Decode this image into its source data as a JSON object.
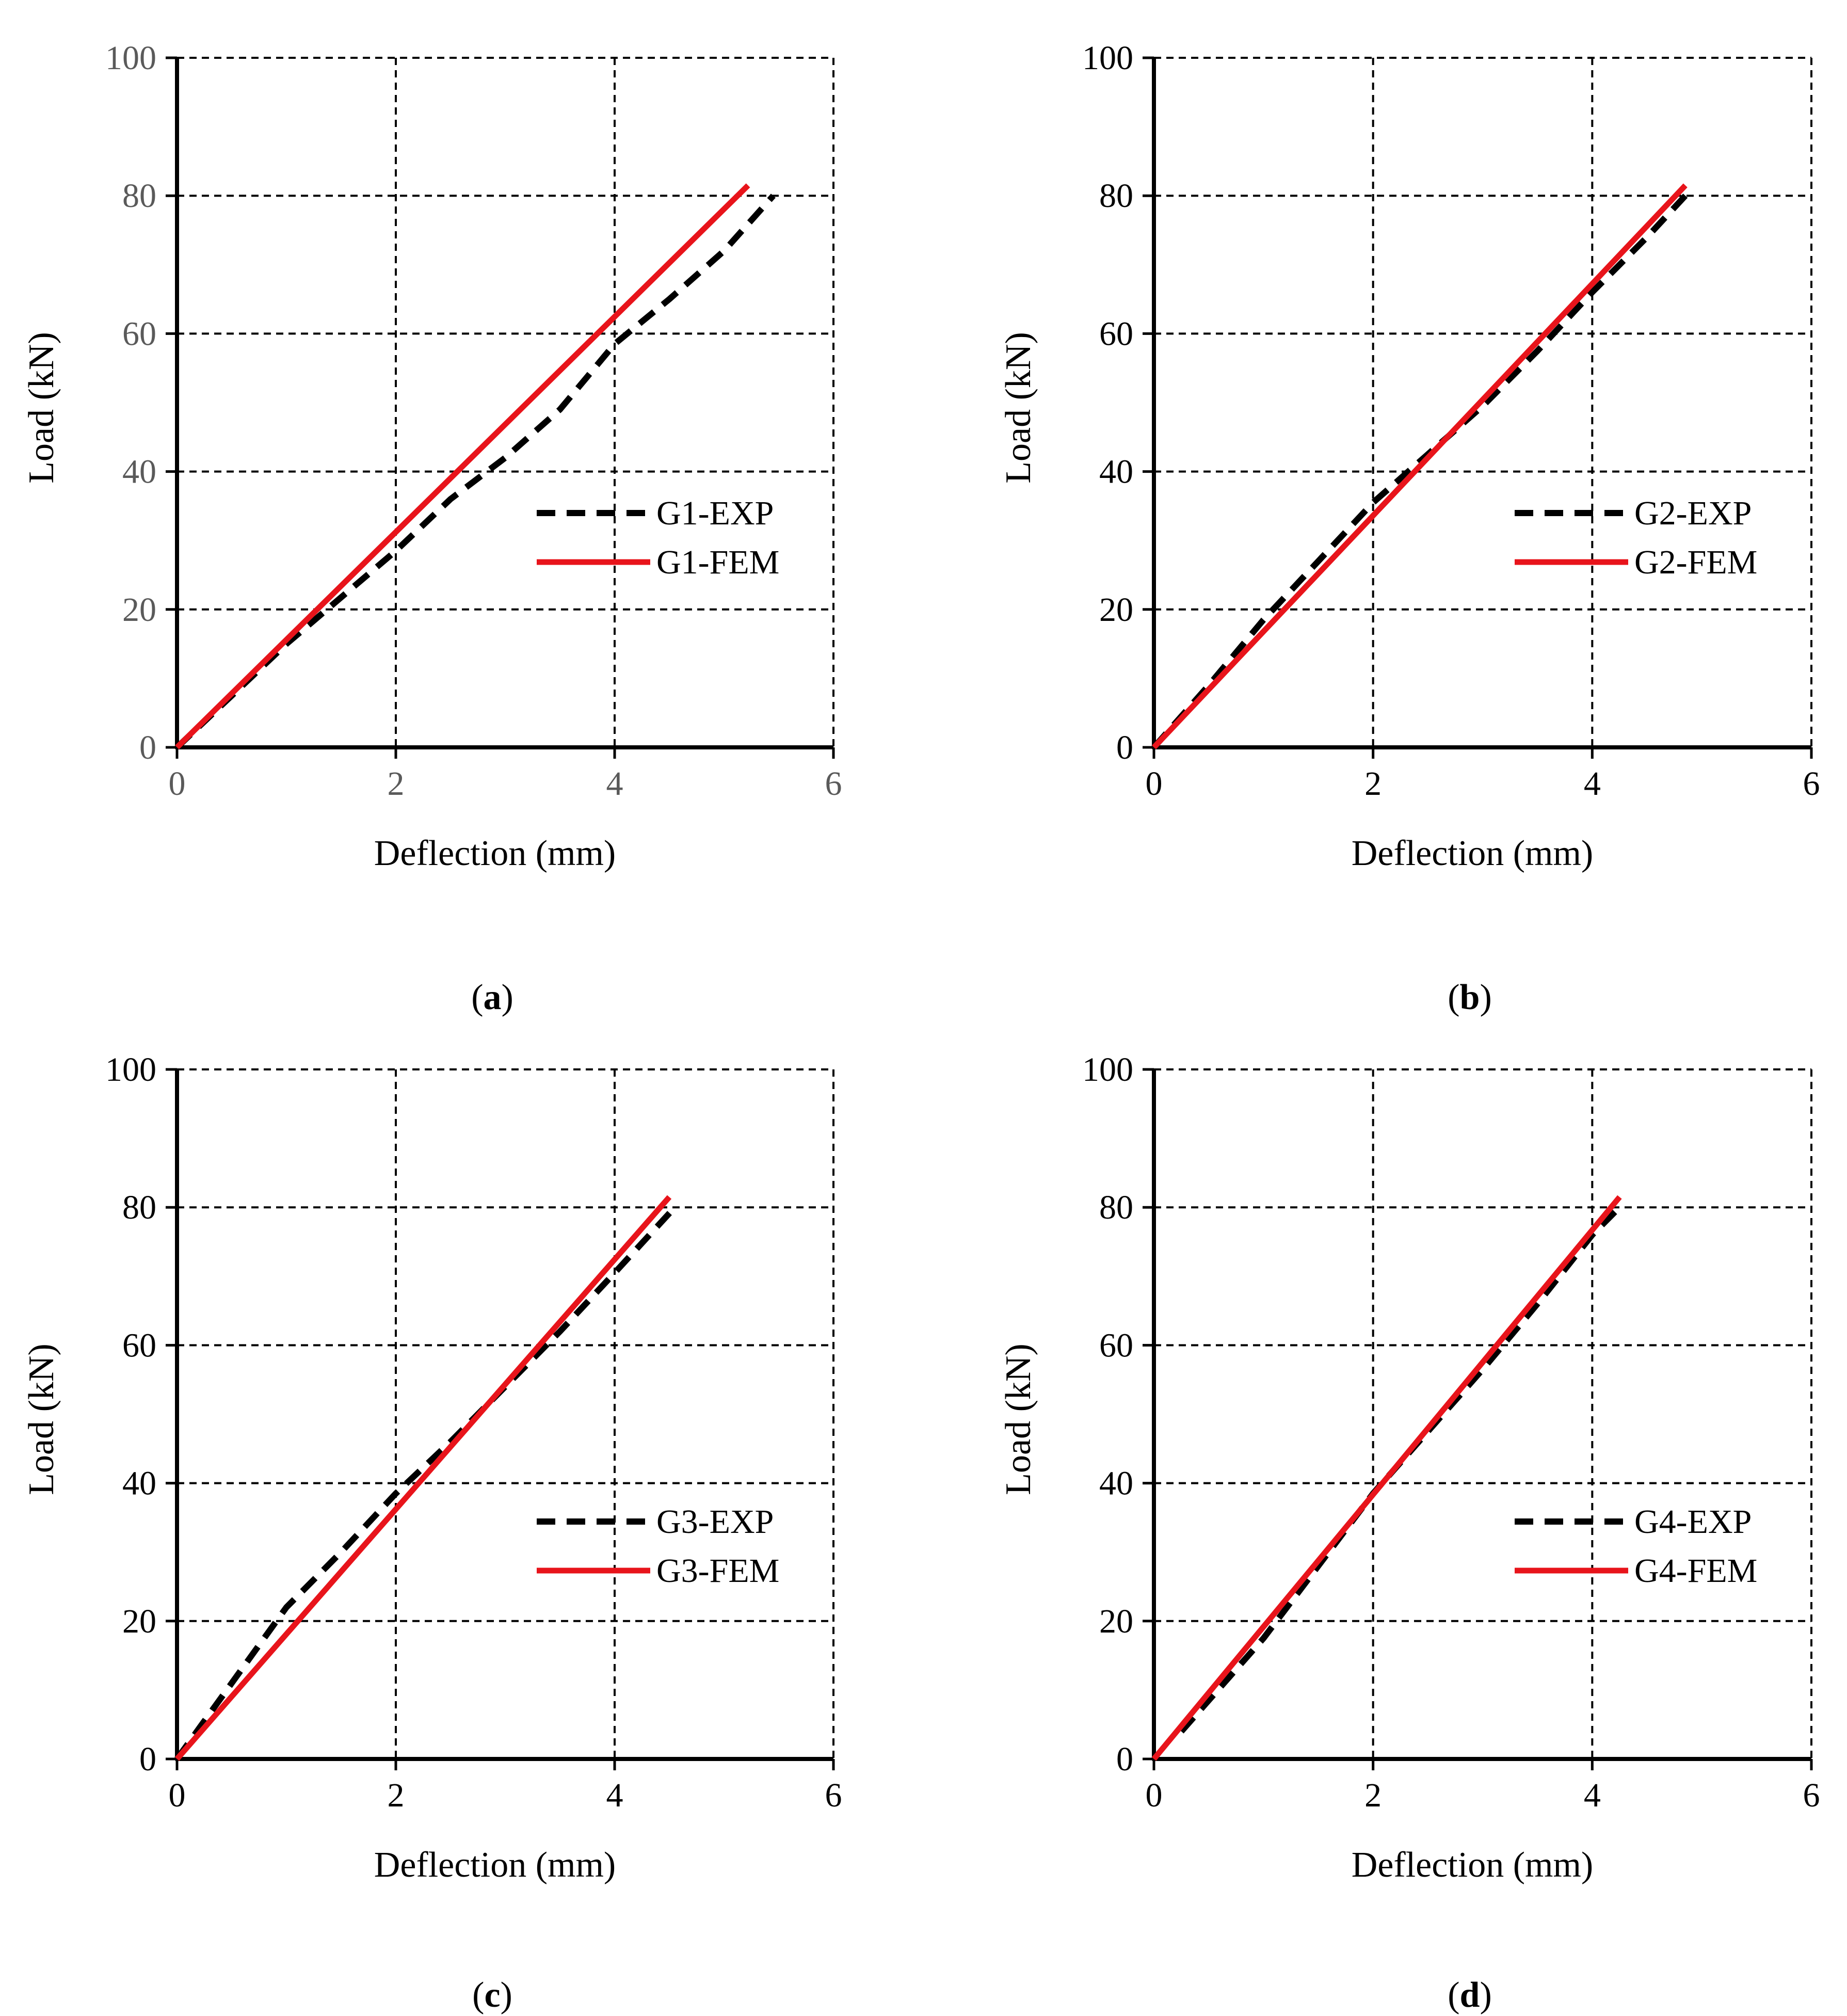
{
  "colors": {
    "exp": "#000000",
    "fem": "#e8141b",
    "grid": "#000000",
    "tick_a": "#5a5a5a",
    "tick": "#000000"
  },
  "chart_data": [
    {
      "type": "line",
      "panel": "(a)",
      "panel_letter": "a",
      "xlabel": "Deflection (mm)",
      "ylabel": "Load (kN)",
      "xlim": [
        0,
        6
      ],
      "ylim": [
        0,
        100
      ],
      "xticks": [
        0,
        2,
        4,
        6
      ],
      "yticks": [
        0,
        20,
        40,
        60,
        80,
        100
      ],
      "grid": true,
      "legend_position": "right-middle",
      "series": [
        {
          "name": "G1-EXP",
          "style": "dashed",
          "x": [
            0,
            1,
            2,
            2.5,
            3,
            3.5,
            4,
            4.5,
            5,
            5.45
          ],
          "y": [
            0,
            15,
            28.5,
            36,
            42,
            49,
            58.5,
            65,
            72,
            80
          ]
        },
        {
          "name": "G1-FEM",
          "style": "solid",
          "x": [
            0,
            5.22
          ],
          "y": [
            0,
            81.5
          ]
        }
      ]
    },
    {
      "type": "line",
      "panel": "(b)",
      "panel_letter": "b",
      "xlabel": "Deflection (mm)",
      "ylabel": "Load (kN)",
      "xlim": [
        0,
        6
      ],
      "ylim": [
        0,
        100
      ],
      "xticks": [
        0,
        2,
        4,
        6
      ],
      "yticks": [
        0,
        20,
        40,
        60,
        80,
        100
      ],
      "grid": true,
      "legend_position": "right-middle",
      "series": [
        {
          "name": "G2-EXP",
          "style": "dashed",
          "x": [
            0,
            0.5,
            1,
            1.5,
            2,
            2.5,
            3,
            3.5,
            4,
            4.5,
            4.85
          ],
          "y": [
            0,
            9,
            18.5,
            27,
            35.5,
            42.5,
            49.5,
            57.5,
            66,
            74,
            80
          ]
        },
        {
          "name": "G2-FEM",
          "style": "solid",
          "x": [
            0,
            4.85
          ],
          "y": [
            0,
            81.5
          ]
        }
      ]
    },
    {
      "type": "line",
      "panel": "(c)",
      "panel_letter": "c",
      "xlabel": "Deflection (mm)",
      "ylabel": "Load (kN)",
      "xlim": [
        0,
        6
      ],
      "ylim": [
        0,
        100
      ],
      "xticks": [
        0,
        2,
        4,
        6
      ],
      "yticks": [
        0,
        20,
        40,
        60,
        80,
        100
      ],
      "grid": true,
      "legend_position": "right-middle",
      "series": [
        {
          "name": "G3-EXP",
          "style": "dashed",
          "x": [
            0,
            0.5,
            1,
            1.5,
            2,
            2.5,
            3,
            3.5,
            4,
            4.55
          ],
          "y": [
            0,
            11,
            22,
            30,
            38.5,
            46,
            54,
            62,
            70.5,
            80
          ]
        },
        {
          "name": "G3-FEM",
          "style": "solid",
          "x": [
            0,
            4.5
          ],
          "y": [
            0,
            81.5
          ]
        }
      ]
    },
    {
      "type": "line",
      "panel": "(d)",
      "panel_letter": "d",
      "xlabel": "Deflection (mm)",
      "ylabel": "Load (kN)",
      "xlim": [
        0,
        6
      ],
      "ylim": [
        0,
        100
      ],
      "xticks": [
        0,
        2,
        4,
        6
      ],
      "yticks": [
        0,
        20,
        40,
        60,
        80,
        100
      ],
      "grid": true,
      "legend_position": "right-middle",
      "series": [
        {
          "name": "G4-EXP",
          "style": "dashed",
          "x": [
            0.25,
            0.5,
            1,
            1.5,
            2,
            2.5,
            3,
            3.5,
            4,
            4.28
          ],
          "y": [
            4,
            8.5,
            17.5,
            28,
            38.5,
            47.5,
            56.5,
            66,
            76,
            80.5
          ]
        },
        {
          "name": "G4-FEM",
          "style": "solid",
          "x": [
            0,
            4.25
          ],
          "y": [
            0,
            81.5
          ]
        }
      ]
    }
  ]
}
